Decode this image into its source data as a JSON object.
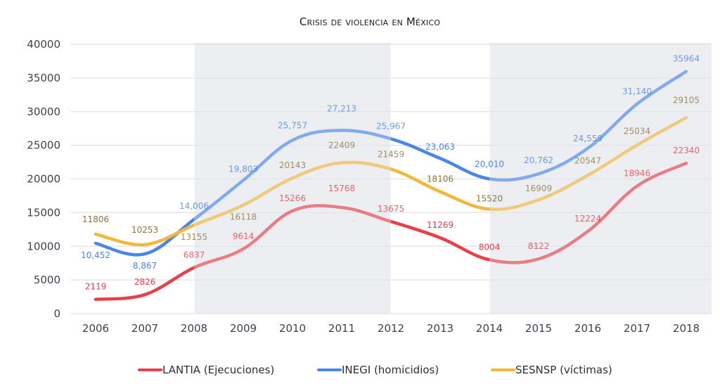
{
  "chart_data": {
    "type": "line",
    "title": "Crisis de violencia en México",
    "xlabel": "",
    "ylabel": "",
    "x": [
      "2006",
      "2007",
      "2008",
      "2009",
      "2010",
      "2011",
      "2012",
      "2013",
      "2014",
      "2015",
      "2016",
      "2017",
      "2018"
    ],
    "ylim": [
      0,
      40000
    ],
    "yticks": [
      "0",
      "5000",
      "10000",
      "15000",
      "20000",
      "25000",
      "30000",
      "35000",
      "40000"
    ],
    "grid": true,
    "legend_position": "bottom",
    "shaded_periods": [
      [
        "2008",
        "2012"
      ],
      [
        "2014",
        "2018"
      ]
    ],
    "series": [
      {
        "name": "LANTIA (Ejecuciones)",
        "color": "#e8404a",
        "values": [
          2119,
          2826,
          6837,
          9614,
          15266,
          15768,
          13675,
          11269,
          8004,
          8122,
          12224,
          18946,
          22340
        ],
        "labels": [
          "2119",
          "2826",
          "6837",
          "9614",
          "15266",
          "15768",
          "13675",
          "11269",
          "8004",
          "8122",
          "12224",
          "18946",
          "22340"
        ]
      },
      {
        "name": "INEGI (homicidios)",
        "color": "#4a86e8",
        "values": [
          10452,
          8867,
          14006,
          19803,
          25757,
          27213,
          25967,
          23063,
          20010,
          20762,
          24559,
          31140,
          35964
        ],
        "labels": [
          "10,452",
          "8,867",
          "14,006",
          "19,803",
          "25,757",
          "27,213",
          "25,967",
          "23,063",
          "20,010",
          "20,762",
          "24,559",
          "31,140",
          "35964"
        ]
      },
      {
        "name": "SESNSP (víctimas)",
        "color": "#f3b73b",
        "label_color": "#8c7440",
        "values": [
          11806,
          10253,
          13155,
          16118,
          20143,
          22409,
          21459,
          18106,
          15520,
          16909,
          20547,
          25034,
          29105
        ],
        "labels": [
          "11806",
          "10253",
          "13155",
          "16118",
          "20143",
          "22409",
          "21459",
          "18106",
          "15520",
          "16909",
          "20547",
          "25034",
          "29105"
        ]
      }
    ]
  }
}
